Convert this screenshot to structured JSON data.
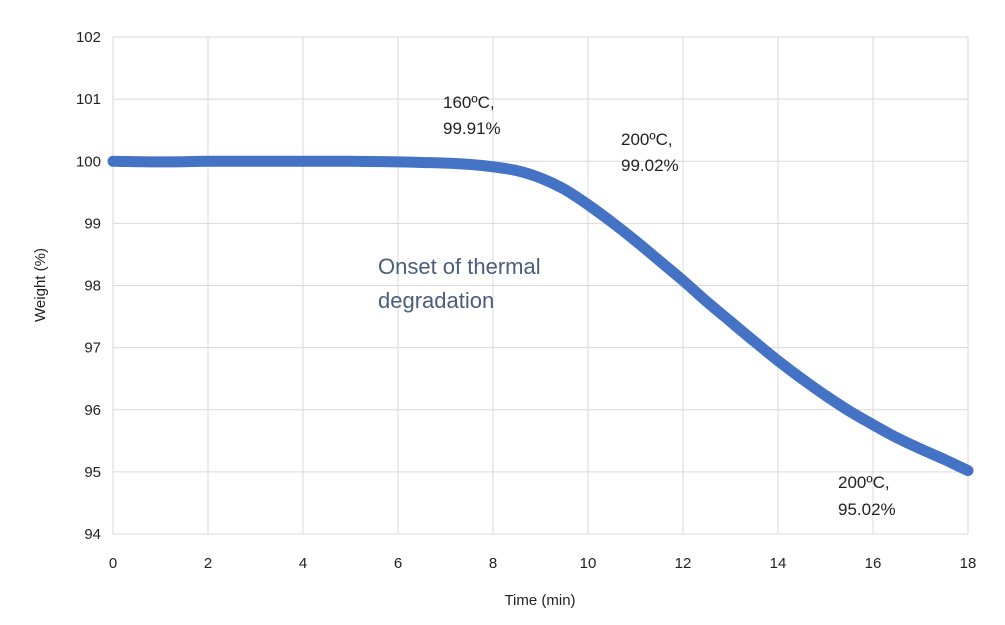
{
  "chart_data": {
    "type": "line",
    "title": "",
    "xlabel": "Time (min)",
    "ylabel": "Weight (%)",
    "xlim": [
      0,
      18
    ],
    "ylim": [
      94,
      102
    ],
    "x_ticks": [
      0,
      2,
      4,
      6,
      8,
      10,
      12,
      14,
      16,
      18
    ],
    "y_ticks": [
      94,
      95,
      96,
      97,
      98,
      99,
      100,
      101,
      102
    ],
    "grid": true,
    "line_color": "#4472c4",
    "series": [
      {
        "name": "Weight",
        "x": [
          0,
          1,
          2,
          3,
          4,
          5,
          6,
          6.5,
          7,
          7.5,
          8,
          8.5,
          9,
          9.5,
          10,
          10.5,
          11,
          11.5,
          12,
          12.5,
          13,
          13.5,
          14,
          14.5,
          15,
          15.5,
          16,
          16.5,
          17,
          17.5,
          18
        ],
        "y": [
          100.0,
          99.99,
          100.0,
          100.0,
          100.0,
          100.0,
          99.99,
          99.98,
          99.97,
          99.95,
          99.91,
          99.85,
          99.73,
          99.55,
          99.3,
          99.02,
          98.72,
          98.4,
          98.08,
          97.74,
          97.42,
          97.1,
          96.79,
          96.5,
          96.23,
          95.98,
          95.76,
          95.55,
          95.37,
          95.2,
          95.02
        ]
      }
    ],
    "annotations": [
      {
        "id": "a160",
        "lines": [
          "160ºC,",
          "99.91%"
        ]
      },
      {
        "id": "a200a",
        "lines": [
          "200ºC,",
          "99.02%"
        ]
      },
      {
        "id": "a200b",
        "lines": [
          "200ºC,",
          "95.02%"
        ]
      },
      {
        "id": "onset",
        "lines": [
          "Onset of thermal",
          "degradation"
        ]
      }
    ]
  }
}
